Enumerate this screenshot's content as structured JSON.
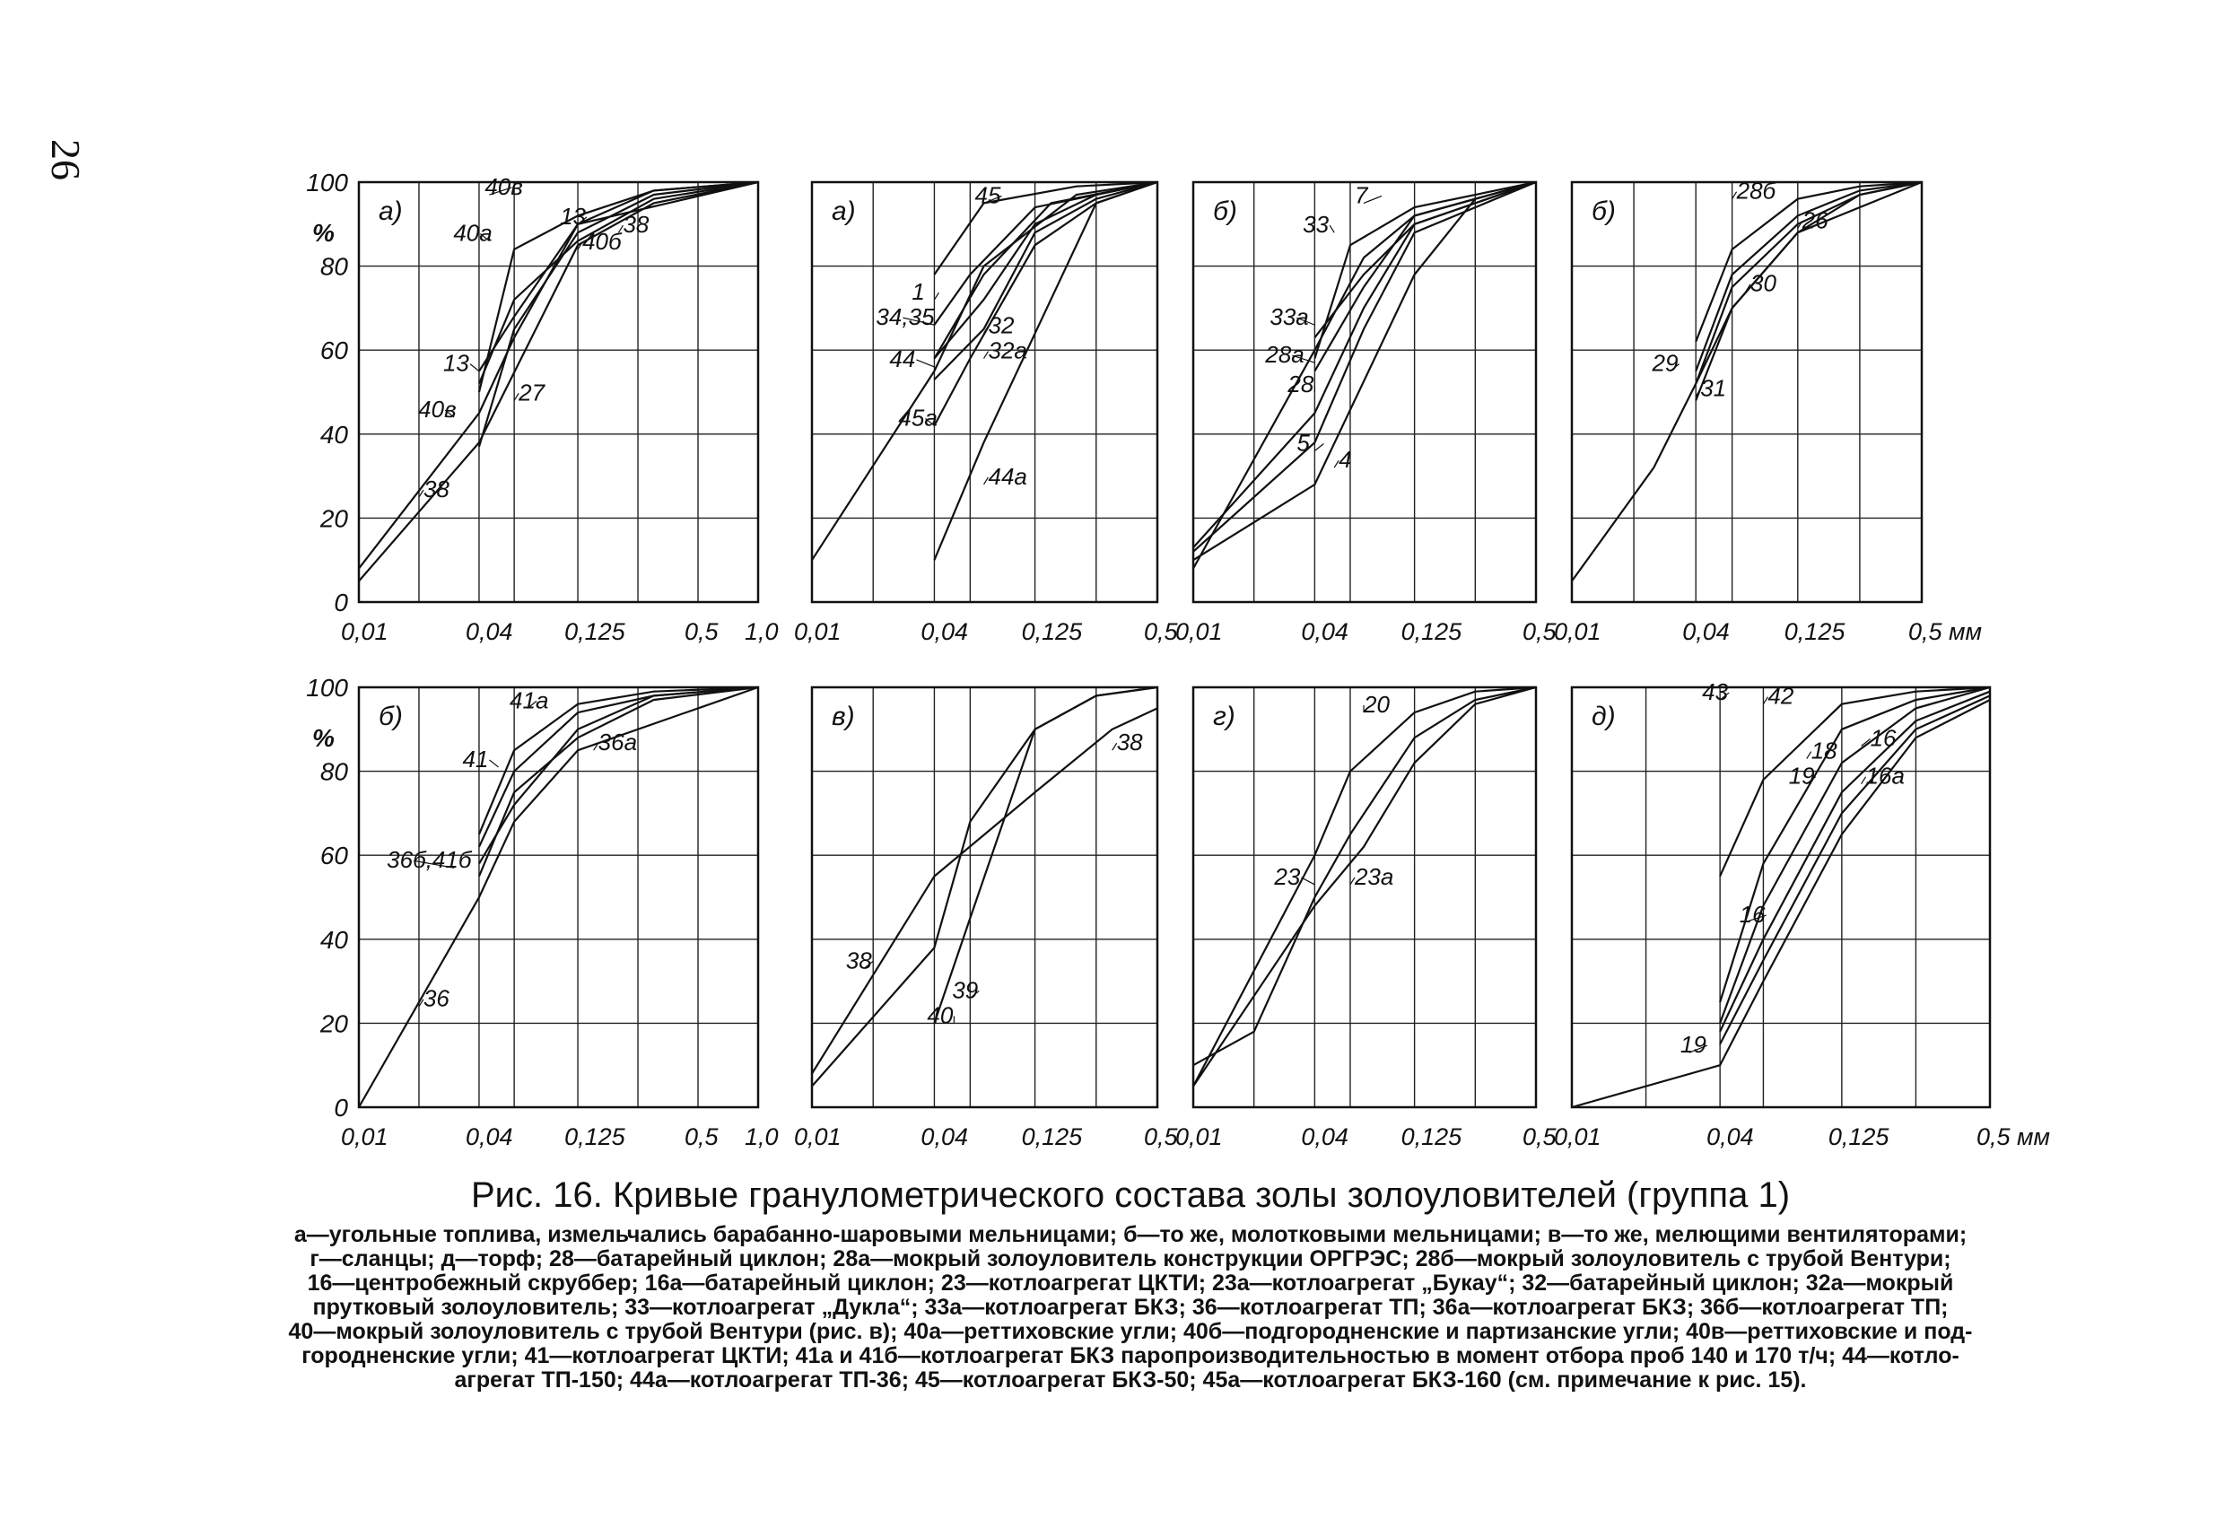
{
  "page_number": "26",
  "units": {
    "percent": "%",
    "mm": "мм"
  },
  "caption": {
    "title": "Рис. 16. Кривые гранулометрического  состава золы золоуловителей (группа 1)",
    "lines": [
      "а—угольные топлива, измельчались барабанно-шаровыми мельницами; б—то же, молотковыми мельницами; в—то же, мелющими вентиляторами;",
      "г—сланцы; д—торф; 28—батарейный циклон; 28а—мокрый золоуловитель конструкции ОРГРЭС; 28б—мокрый золоуловитель с трубой Вентури;",
      "16—центробежный скруббер; 16а—батарейный циклон; 23—котлоагрегат ЦКТИ; 23а—котлоагрегат „Букау“; 32—батарейный циклон; 32а—мокрый",
      "прутковый золоуловитель; 33—котлоагрегат „Дукла“; 33а—котлоагрегат БКЗ; 36—котлоагрегат ТП; 36а—котлоагрегат БКЗ; 36б—котлоагрегат ТП;",
      "40—мокрый золоуловитель с трубой Вентури (рис. в); 40а—реттиховские угли; 40б—подгородненские и партизанские угли; 40в—реттиховские и под-",
      "городненские угли; 41—котлоагрегат ЦКТИ; 41а и 41б—котлоагрегат БКЗ паропроизводительностью в момент отбора проб 140 и 170 т/ч; 44—котло-",
      "агрегат ТП-150; 44а—котлоагрегат ТП-36; 45—котлоагрегат БКЗ-50; 45а—котлоагрегат БКЗ-160 (см. примечание к рис. 15)."
    ]
  },
  "chart_data": [
    {
      "type": "line",
      "panel_label": "а)",
      "x_ticks": [
        "0,01",
        "0,04",
        "0,125",
        "0,5",
        "1,0"
      ],
      "y_ticks": [
        "0",
        "20",
        "40",
        "60",
        "80",
        "100"
      ],
      "xlim": [
        0.01,
        1.0
      ],
      "ylim": [
        0,
        100
      ],
      "grid": true,
      "series": [
        {
          "name": "38",
          "x": [
            0.01,
            0.04,
            0.125,
            0.3,
            1.0
          ],
          "y": [
            5,
            38,
            85,
            95,
            100
          ]
        },
        {
          "name": "27",
          "x": [
            0.04,
            0.06,
            0.125,
            0.3,
            1.0
          ],
          "y": [
            37,
            65,
            88,
            97,
            100
          ]
        },
        {
          "name": "40в",
          "x": [
            0.01,
            0.04,
            0.06,
            0.125,
            1.0
          ],
          "y": [
            8,
            45,
            63,
            90,
            100
          ]
        },
        {
          "name": "13",
          "x": [
            0.04,
            0.06,
            0.125,
            0.3,
            1.0
          ],
          "y": [
            55,
            68,
            90,
            98,
            100
          ]
        },
        {
          "name": "40а",
          "x": [
            0.04,
            0.06,
            0.125,
            0.3,
            1.0
          ],
          "y": [
            50,
            84,
            92,
            98,
            100
          ]
        },
        {
          "name": "40б",
          "x": [
            0.04,
            0.06,
            0.125,
            0.3,
            1.0
          ],
          "y": [
            52,
            72,
            86,
            96,
            100
          ]
        }
      ],
      "annotations": [
        "40в",
        "40а",
        "13",
        "13",
        "38",
        "40б",
        "40в",
        "27",
        "38"
      ]
    },
    {
      "type": "line",
      "panel_label": "а)",
      "x_ticks": [
        "0,01",
        "0,04",
        "0,125",
        "0,5"
      ],
      "y_ticks": [],
      "xlim": [
        0.01,
        0.5
      ],
      "ylim": [
        0,
        100
      ],
      "grid": true,
      "series": [
        {
          "name": "45",
          "x": [
            0.04,
            0.07,
            0.2,
            0.5
          ],
          "y": [
            78,
            95,
            99,
            100
          ]
        },
        {
          "name": "1",
          "x": [
            0.04,
            0.06,
            0.125,
            0.5
          ],
          "y": [
            66,
            78,
            94,
            100
          ]
        },
        {
          "name": "34,35",
          "x": [
            0.04,
            0.07,
            0.15,
            0.5
          ],
          "y": [
            58,
            78,
            95,
            100
          ]
        },
        {
          "name": "44",
          "x": [
            0.01,
            0.04,
            0.07,
            0.2,
            0.5
          ],
          "y": [
            10,
            55,
            80,
            97,
            100
          ]
        },
        {
          "name": "32",
          "x": [
            0.04,
            0.07,
            0.125,
            0.25,
            0.5
          ],
          "y": [
            58,
            72,
            90,
            97,
            100
          ]
        },
        {
          "name": "32а",
          "x": [
            0.04,
            0.07,
            0.125,
            0.25,
            0.5
          ],
          "y": [
            53,
            65,
            88,
            96,
            100
          ]
        },
        {
          "name": "45а",
          "x": [
            0.04,
            0.06,
            0.125,
            0.25,
            0.5
          ],
          "y": [
            42,
            58,
            85,
            95,
            100
          ]
        },
        {
          "name": "44а",
          "x": [
            0.04,
            0.07,
            0.25,
            0.5
          ],
          "y": [
            10,
            38,
            95,
            100
          ]
        }
      ],
      "annotations": [
        "45",
        "1",
        "34,35",
        "32",
        "44",
        "32а",
        "45а",
        "44а"
      ]
    },
    {
      "type": "line",
      "panel_label": "б)",
      "x_ticks": [
        "0,01",
        "0,04",
        "0,125",
        "0,5"
      ],
      "y_ticks": [],
      "xlim": [
        0.01,
        0.5
      ],
      "ylim": [
        0,
        100
      ],
      "grid": true,
      "series": [
        {
          "name": "7",
          "x": [
            0.04,
            0.06,
            0.125,
            0.5
          ],
          "y": [
            58,
            85,
            94,
            100
          ]
        },
        {
          "name": "33",
          "x": [
            0.01,
            0.04,
            0.07,
            0.125,
            0.5
          ],
          "y": [
            8,
            60,
            82,
            92,
            100
          ]
        },
        {
          "name": "33а",
          "x": [
            0.04,
            0.07,
            0.125,
            0.5
          ],
          "y": [
            63,
            78,
            90,
            100
          ]
        },
        {
          "name": "28а",
          "x": [
            0.04,
            0.07,
            0.125,
            0.5
          ],
          "y": [
            55,
            75,
            92,
            100
          ]
        },
        {
          "name": "28",
          "x": [
            0.01,
            0.04,
            0.07,
            0.125,
            0.5
          ],
          "y": [
            13,
            45,
            70,
            90,
            100
          ]
        },
        {
          "name": "5",
          "x": [
            0.01,
            0.04,
            0.07,
            0.125,
            0.5
          ],
          "y": [
            12,
            38,
            65,
            88,
            100
          ]
        },
        {
          "name": "4",
          "x": [
            0.01,
            0.04,
            0.125,
            0.25,
            0.5
          ],
          "y": [
            10,
            28,
            78,
            96,
            100
          ]
        }
      ],
      "annotations": [
        "7",
        "33",
        "33а",
        "28а",
        "28",
        "5",
        "4"
      ]
    },
    {
      "type": "line",
      "panel_label": "б)",
      "x_ticks": [
        "0,01",
        "0,04",
        "0,125",
        "0,5 мм"
      ],
      "y_ticks": [],
      "xlim": [
        0.01,
        0.5
      ],
      "ylim": [
        0,
        100
      ],
      "grid": true,
      "series": [
        {
          "name": "28б",
          "x": [
            0.04,
            0.06,
            0.125,
            0.25,
            0.5
          ],
          "y": [
            62,
            84,
            96,
            99,
            100
          ]
        },
        {
          "name": "26",
          "x": [
            0.04,
            0.06,
            0.125,
            0.25,
            0.5
          ],
          "y": [
            55,
            78,
            92,
            98,
            100
          ]
        },
        {
          "name": "30",
          "x": [
            0.04,
            0.06,
            0.125,
            0.25,
            0.5
          ],
          "y": [
            52,
            75,
            90,
            97,
            100
          ]
        },
        {
          "name": "29",
          "x": [
            0.01,
            0.025,
            0.04,
            0.06,
            0.125,
            0.5
          ],
          "y": [
            5,
            32,
            52,
            70,
            88,
            100
          ]
        },
        {
          "name": "31",
          "x": [
            0.04,
            0.06,
            0.125,
            0.25,
            0.5
          ],
          "y": [
            48,
            70,
            88,
            97,
            100
          ]
        }
      ],
      "annotations": [
        "28б",
        "26",
        "30",
        "29",
        "31"
      ]
    },
    {
      "type": "line",
      "panel_label": "б)",
      "x_ticks": [
        "0,01",
        "0,04",
        "0,125",
        "0,5",
        "1,0"
      ],
      "y_ticks": [
        "0",
        "20",
        "40",
        "60",
        "80",
        "100"
      ],
      "xlim": [
        0.01,
        1.0
      ],
      "ylim": [
        0,
        100
      ],
      "grid": true,
      "series": [
        {
          "name": "41а",
          "x": [
            0.04,
            0.06,
            0.125,
            0.3,
            1.0
          ],
          "y": [
            65,
            85,
            96,
            99,
            100
          ]
        },
        {
          "name": "41",
          "x": [
            0.04,
            0.06,
            0.125,
            0.3,
            1.0
          ],
          "y": [
            62,
            80,
            94,
            98,
            100
          ]
        },
        {
          "name": "36а",
          "x": [
            0.04,
            0.06,
            0.125,
            0.3,
            1.0
          ],
          "y": [
            55,
            75,
            88,
            97,
            100
          ]
        },
        {
          "name": "36б,41б",
          "x": [
            0.04,
            0.06,
            0.125,
            0.3,
            1.0
          ],
          "y": [
            58,
            72,
            90,
            98,
            100
          ]
        },
        {
          "name": "36",
          "x": [
            0.01,
            0.04,
            0.06,
            0.125,
            0.5,
            1.0
          ],
          "y": [
            0,
            50,
            68,
            85,
            95,
            100
          ]
        }
      ],
      "annotations": [
        "41а",
        "41",
        "36а",
        "36б,41б",
        "36"
      ]
    },
    {
      "type": "line",
      "panel_label": "в)",
      "x_ticks": [
        "0,01",
        "0,04",
        "0,125",
        "0,5"
      ],
      "y_ticks": [],
      "xlim": [
        0.01,
        0.5
      ],
      "ylim": [
        0,
        100
      ],
      "grid": true,
      "series": [
        {
          "name": "38",
          "x": [
            0.01,
            0.04,
            0.125,
            0.3,
            0.5
          ],
          "y": [
            8,
            55,
            75,
            90,
            95
          ]
        },
        {
          "name": "39",
          "x": [
            0.01,
            0.04,
            0.06,
            0.125,
            0.25,
            0.5
          ],
          "y": [
            5,
            38,
            68,
            90,
            98,
            100
          ]
        },
        {
          "name": "40",
          "x": [
            0.04,
            0.06,
            0.125,
            0.25,
            0.5
          ],
          "y": [
            20,
            45,
            90,
            98,
            100
          ]
        }
      ],
      "annotations": [
        "38",
        "38",
        "39",
        "40"
      ]
    },
    {
      "type": "line",
      "panel_label": "г)",
      "x_ticks": [
        "0,01",
        "0,04",
        "0,125",
        "0,5"
      ],
      "y_ticks": [],
      "xlim": [
        0.01,
        0.5
      ],
      "ylim": [
        0,
        100
      ],
      "grid": true,
      "series": [
        {
          "name": "20",
          "x": [
            0.01,
            0.04,
            0.06,
            0.125,
            0.25,
            0.5
          ],
          "y": [
            5,
            60,
            80,
            94,
            99,
            100
          ]
        },
        {
          "name": "23",
          "x": [
            0.01,
            0.02,
            0.04,
            0.06,
            0.125,
            0.25,
            0.5
          ],
          "y": [
            10,
            18,
            50,
            65,
            88,
            97,
            100
          ]
        },
        {
          "name": "23а",
          "x": [
            0.01,
            0.04,
            0.07,
            0.125,
            0.25,
            0.5
          ],
          "y": [
            5,
            48,
            62,
            82,
            96,
            100
          ]
        }
      ],
      "annotations": [
        "20",
        "23",
        "23а"
      ]
    },
    {
      "type": "line",
      "panel_label": "д)",
      "x_ticks": [
        "0,01",
        "0,04",
        "0,125",
        "0,5 мм"
      ],
      "y_ticks": [],
      "xlim": [
        0.01,
        0.5
      ],
      "ylim": [
        0,
        100
      ],
      "grid": true,
      "series": [
        {
          "name": "43",
          "x": [
            0.04,
            0.06,
            0.125,
            0.25,
            0.5
          ],
          "y": [
            55,
            78,
            96,
            99,
            100
          ]
        },
        {
          "name": "42",
          "x": [
            0.04,
            0.06,
            0.125,
            0.25,
            0.5
          ],
          "y": [
            25,
            58,
            90,
            97,
            100
          ]
        },
        {
          "name": "18",
          "x": [
            0.04,
            0.06,
            0.125,
            0.25,
            0.5
          ],
          "y": [
            20,
            48,
            82,
            95,
            100
          ]
        },
        {
          "name": "16",
          "x": [
            0.04,
            0.06,
            0.125,
            0.25,
            0.5
          ],
          "y": [
            18,
            40,
            75,
            92,
            99
          ]
        },
        {
          "name": "16а",
          "x": [
            0.04,
            0.06,
            0.125,
            0.25,
            0.5
          ],
          "y": [
            15,
            35,
            70,
            90,
            98
          ]
        },
        {
          "name": "19",
          "x": [
            0.01,
            0.04,
            0.06,
            0.125,
            0.25,
            0.5
          ],
          "y": [
            0,
            10,
            30,
            65,
            88,
            97
          ]
        }
      ],
      "annotations": [
        "43",
        "42",
        "18",
        "19",
        "16",
        "16а",
        "16",
        "19"
      ]
    }
  ]
}
